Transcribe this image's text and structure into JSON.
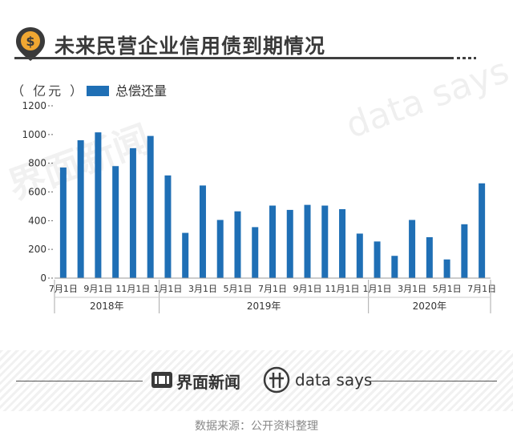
{
  "header": {
    "title": "未来民营企业信用债到期情况",
    "badge_symbol": "$"
  },
  "unit_label": "（ 亿元 ）",
  "legend": {
    "label": "总偿还量",
    "color": "#1f6fb5"
  },
  "watermarks": {
    "left": "界面新闻",
    "right": "data says"
  },
  "footer": {
    "brand_cn": "界面新闻",
    "brand_en": "data says",
    "source": "数据来源：公开资料整理"
  },
  "chart_data": {
    "type": "bar",
    "title": "未来民营企业信用债到期情况",
    "ylabel": "亿元",
    "xlabel": "",
    "ylim": [
      0,
      1200
    ],
    "yticks": [
      0,
      200,
      400,
      600,
      800,
      1000,
      1200
    ],
    "grid": false,
    "legend_position": "top-left",
    "series": [
      {
        "name": "总偿还量",
        "color": "#1f6fb5",
        "values": [
          770,
          960,
          1015,
          780,
          905,
          990,
          715,
          315,
          645,
          405,
          465,
          355,
          505,
          475,
          510,
          505,
          480,
          310,
          255,
          155,
          405,
          285,
          130,
          375,
          660
        ]
      }
    ],
    "categories": [
      "2018-07",
      "2018-08",
      "2018-09",
      "2018-10",
      "2018-11",
      "2018-12",
      "2019-01",
      "2019-02",
      "2019-03",
      "2019-04",
      "2019-05",
      "2019-06",
      "2019-07",
      "2019-08",
      "2019-09",
      "2019-10",
      "2019-11",
      "2019-12",
      "2020-01",
      "2020-02",
      "2020-03",
      "2020-04",
      "2020-05",
      "2020-06",
      "2020-07"
    ],
    "tick_labels": [
      {
        "index": 0,
        "label": "7月1日"
      },
      {
        "index": 2,
        "label": "9月1日"
      },
      {
        "index": 4,
        "label": "11月1日"
      },
      {
        "index": 6,
        "label": "1月1日"
      },
      {
        "index": 8,
        "label": "3月1日"
      },
      {
        "index": 10,
        "label": "5月1日"
      },
      {
        "index": 12,
        "label": "7月1日"
      },
      {
        "index": 14,
        "label": "9月1日"
      },
      {
        "index": 16,
        "label": "11月1日"
      },
      {
        "index": 18,
        "label": "1月1日"
      },
      {
        "index": 20,
        "label": "3月1日"
      },
      {
        "index": 22,
        "label": "5月1日"
      },
      {
        "index": 24,
        "label": "7月1日"
      }
    ],
    "year_groups": [
      {
        "label": "2018年",
        "start": 0,
        "end": 5
      },
      {
        "label": "2019年",
        "start": 6,
        "end": 17
      },
      {
        "label": "2020年",
        "start": 18,
        "end": 24
      }
    ]
  }
}
